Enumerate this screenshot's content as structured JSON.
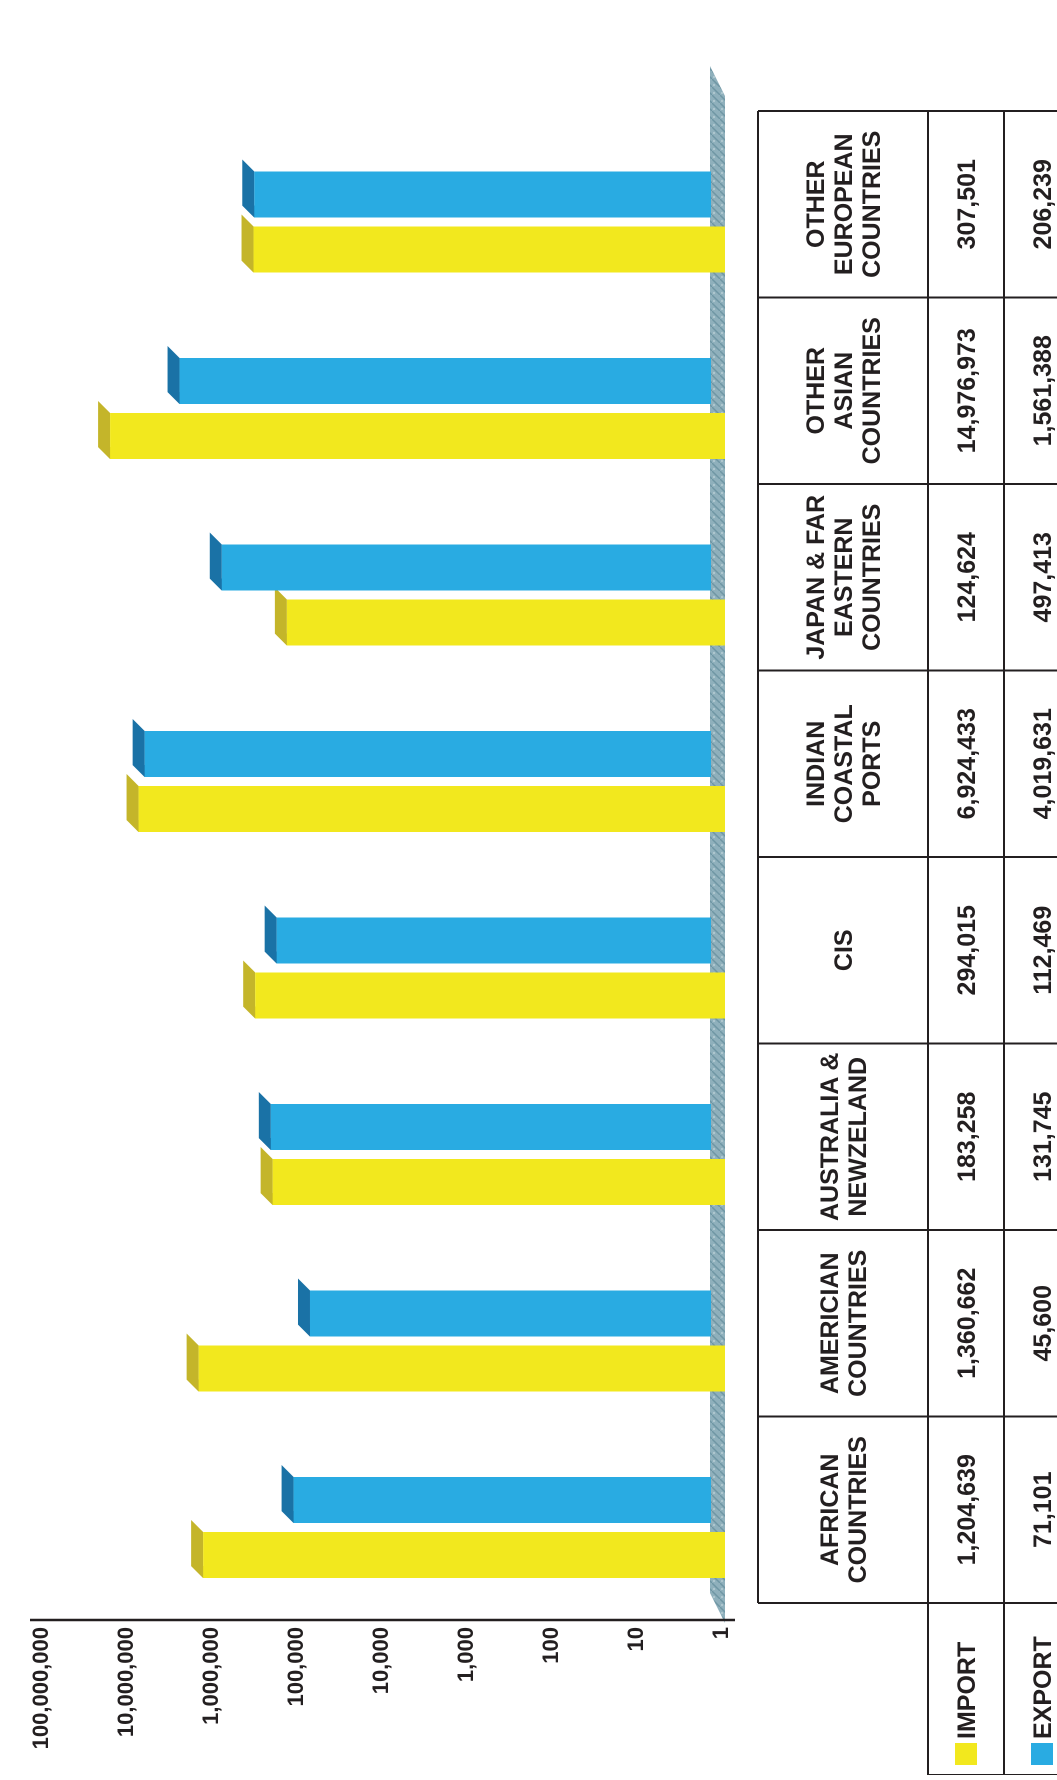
{
  "chart_data": {
    "type": "bar",
    "scale": "log",
    "ylim": [
      1,
      100000000
    ],
    "y_ticks": [
      "1",
      "10",
      "100",
      "1,000",
      "10,000",
      "100,000",
      "1,000,000",
      "10,000,000",
      "100,000,000"
    ],
    "categories": [
      [
        "AFRICAN",
        "COUNTRIES"
      ],
      [
        "AMERICIAN",
        "COUNTRIES"
      ],
      [
        "AUSTRALIA &",
        "NEWZELAND"
      ],
      [
        "CIS"
      ],
      [
        "INDIAN",
        "COASTAL",
        "PORTS"
      ],
      [
        "JAPAN & FAR",
        "EASTERN",
        "COUNTRIES"
      ],
      [
        "OTHER",
        "ASIAN",
        "COUNTRIES"
      ],
      [
        "OTHER",
        "EUROPEAN",
        "COUNTRIES"
      ]
    ],
    "series": [
      {
        "name": "IMPORT",
        "color": "#f2e81e",
        "top_color": "#c4b52a",
        "values": [
          1204639,
          1360662,
          183258,
          294015,
          6924433,
          124624,
          14976973,
          307501
        ],
        "labels": [
          "1,204,639",
          "1,360,662",
          "183,258",
          "294,015",
          "6,924,433",
          "124,624",
          "14,976,973",
          "307,501"
        ]
      },
      {
        "name": "EXPORT",
        "color": "#29abe2",
        "top_color": "#1a72a6",
        "values": [
          71101,
          45600,
          131745,
          112469,
          4019631,
          497413,
          1561388,
          206239
        ],
        "labels": [
          "71,101",
          "45,600",
          "131,745",
          "112,469",
          "4,019,631",
          "497,413",
          "1,561,388",
          "206,239"
        ]
      }
    ],
    "grid": false,
    "legend": "data-table"
  }
}
